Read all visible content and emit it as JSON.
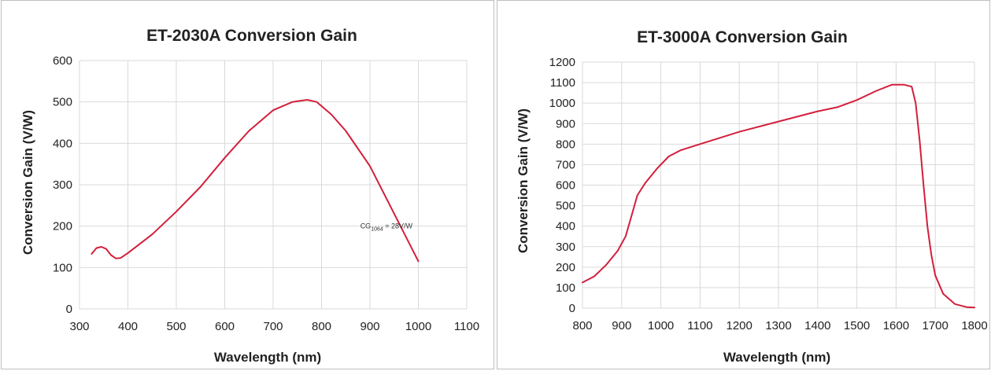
{
  "charts": [
    {
      "type": "line",
      "title": "ET-2030A Conversion Gain",
      "xlabel": "Wavelength (nm)",
      "ylabel": "Conversion Gain (V/W)",
      "xlim": [
        300,
        1100
      ],
      "ylim": [
        0,
        600
      ],
      "xticks": [
        300,
        400,
        500,
        600,
        700,
        800,
        900,
        1000,
        1100
      ],
      "yticks": [
        0,
        100,
        200,
        300,
        400,
        500,
        600
      ],
      "grid": true,
      "line_color": "#d21f3c",
      "annotation": {
        "prefix": "CG",
        "sub": "1064",
        "suffix": " = 28V/W",
        "x": 880,
        "y": 200
      },
      "series": [
        {
          "x": [
            325,
            335,
            345,
            355,
            365,
            375,
            385,
            400,
            450,
            500,
            550,
            600,
            650,
            700,
            740,
            770,
            790,
            820,
            850,
            900,
            950,
            1000
          ],
          "y": [
            133,
            147,
            150,
            145,
            130,
            122,
            123,
            135,
            180,
            235,
            295,
            365,
            430,
            480,
            500,
            505,
            500,
            470,
            430,
            345,
            230,
            115
          ]
        }
      ]
    },
    {
      "type": "line",
      "title": "ET-3000A Conversion Gain",
      "xlabel": "Wavelength (nm)",
      "ylabel": "Conversion Gain (V/W)",
      "xlim": [
        800,
        1800
      ],
      "ylim": [
        0,
        1200
      ],
      "xticks": [
        800,
        900,
        1000,
        1100,
        1200,
        1300,
        1400,
        1500,
        1600,
        1700,
        1800
      ],
      "yticks": [
        0,
        100,
        200,
        300,
        400,
        500,
        600,
        700,
        800,
        900,
        1000,
        1100,
        1200
      ],
      "grid": true,
      "line_color": "#d21f3c",
      "series": [
        {
          "x": [
            800,
            830,
            860,
            890,
            910,
            925,
            940,
            960,
            990,
            1020,
            1050,
            1100,
            1200,
            1300,
            1400,
            1450,
            1500,
            1550,
            1590,
            1620,
            1640,
            1650,
            1660,
            1670,
            1680,
            1690,
            1700,
            1720,
            1750,
            1780,
            1800
          ],
          "y": [
            125,
            155,
            210,
            280,
            350,
            450,
            550,
            610,
            680,
            740,
            770,
            800,
            860,
            910,
            960,
            980,
            1015,
            1060,
            1090,
            1090,
            1080,
            1000,
            820,
            600,
            400,
            260,
            160,
            70,
            20,
            5,
            3
          ]
        }
      ]
    }
  ]
}
